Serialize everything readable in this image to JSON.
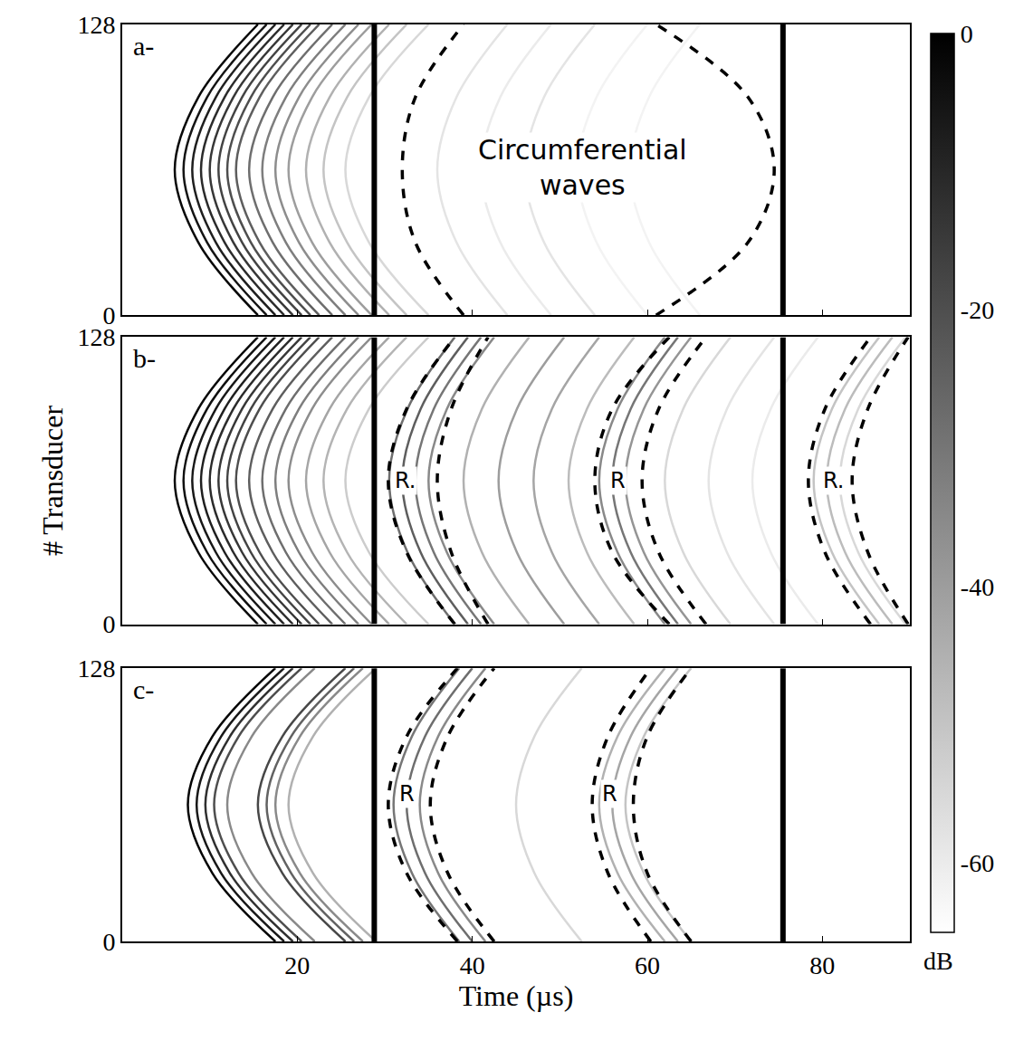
{
  "chart_data": [
    {
      "type": "line",
      "title": "a-",
      "xlim": [
        0,
        90
      ],
      "ylim": [
        0,
        128
      ],
      "xticks": [
        20,
        40,
        60,
        80
      ],
      "yticks": [
        0,
        128
      ],
      "tick_labels": "y",
      "y": [
        0,
        32,
        64,
        96,
        128
      ],
      "colorbar": {
        "range": [
          -65,
          0
        ],
        "ticks": [
          0,
          -20,
          -40,
          -60
        ],
        "label": "dB"
      },
      "vlines": [
        28.8,
        75.5
      ],
      "annotations": [
        {
          "text": "Circumferential\nwaves",
          "x": 52.6,
          "y": 65
        }
      ],
      "series": [
        {
          "x": [
            44,
            38.2,
            36,
            38.2,
            44
          ],
          "level": -58
        },
        {
          "x": [
            49,
            43.2,
            41,
            43.2,
            49
          ],
          "level": -60
        },
        {
          "x": [
            54,
            48.2,
            46,
            48.2,
            54
          ],
          "level": -58
        },
        {
          "x": [
            60,
            54.2,
            52,
            54.2,
            60
          ],
          "level": -62
        },
        {
          "x": [
            66,
            60.2,
            58,
            60.2,
            66
          ],
          "level": -62
        },
        {
          "x": [
            35,
            28.2,
            25.5,
            28.2,
            35
          ],
          "level": -55
        },
        {
          "x": [
            32.5,
            25.7,
            23,
            25.7,
            32.5
          ],
          "level": -50
        },
        {
          "x": [
            30.5,
            23.7,
            21,
            23.7,
            30.5
          ],
          "level": -45
        },
        {
          "x": [
            28.5,
            21.7,
            19,
            21.7,
            28.5
          ],
          "level": -40
        },
        {
          "x": [
            27,
            20.2,
            17.5,
            20.2,
            27
          ],
          "level": -36
        },
        {
          "x": [
            25.5,
            18.7,
            16,
            18.7,
            25.5
          ],
          "level": -32
        },
        {
          "x": [
            24,
            17.2,
            14.5,
            17.2,
            24
          ],
          "level": -28
        },
        {
          "x": [
            22.5,
            15.7,
            13,
            15.7,
            22.5
          ],
          "level": -24
        },
        {
          "x": [
            21.5,
            14.7,
            12,
            14.7,
            21.5
          ],
          "level": -20
        },
        {
          "x": [
            20.5,
            13.7,
            11,
            13.7,
            20.5
          ],
          "level": -17
        },
        {
          "x": [
            19.5,
            12.7,
            10,
            12.7,
            19.5
          ],
          "level": -14
        },
        {
          "x": [
            18.5,
            11.7,
            9,
            11.7,
            18.5
          ],
          "level": -11
        },
        {
          "x": [
            17.5,
            10.7,
            8,
            10.7,
            17.5
          ],
          "level": -8
        },
        {
          "x": [
            16.5,
            9.7,
            7,
            9.7,
            16.5
          ],
          "level": -5
        },
        {
          "x": [
            15.5,
            8.7,
            6,
            8.7,
            15.5
          ],
          "level": -2
        },
        {
          "x": [
            39,
            33.5,
            32,
            33.5,
            39
          ],
          "color": "#000000",
          "line_style": "dashed"
        },
        {
          "x": [
            61,
            71.5,
            74.5,
            71.5,
            61
          ],
          "color": "#000000",
          "line_style": "dashed"
        }
      ]
    },
    {
      "type": "line",
      "title": "b-",
      "xlim": [
        0,
        90
      ],
      "ylim": [
        0,
        128
      ],
      "xticks": [
        20,
        40,
        60,
        80
      ],
      "yticks": [
        0,
        128
      ],
      "tick_labels": "y",
      "y_label": "# Transducer",
      "y": [
        0,
        32,
        64,
        96,
        128
      ],
      "vlines": [
        28.8,
        75.5
      ],
      "annotations": [
        {
          "text": "R.",
          "x": 32.3,
          "y": 64
        },
        {
          "text": "R",
          "x": 56.6,
          "y": 64
        },
        {
          "text": "R.",
          "x": 81.3,
          "y": 64
        }
      ],
      "series": [
        {
          "x": [
            46.5,
            41.1,
            39,
            41.1,
            46.5
          ],
          "level": -45
        },
        {
          "x": [
            50.5,
            45.1,
            43,
            45.1,
            50.5
          ],
          "level": -40
        },
        {
          "x": [
            54.5,
            49.1,
            47,
            49.1,
            54.5
          ],
          "level": -42
        },
        {
          "x": [
            58.5,
            53.1,
            51,
            53.1,
            58.5
          ],
          "level": -48
        },
        {
          "x": [
            69.5,
            64.1,
            62,
            64.1,
            69.5
          ],
          "level": -55
        },
        {
          "x": [
            74.5,
            69.1,
            67,
            69.1,
            74.5
          ],
          "level": -58
        },
        {
          "x": [
            79.5,
            74.1,
            72,
            74.1,
            79.5
          ],
          "level": -60
        },
        {
          "x": [
            35,
            28.2,
            25.5,
            28.2,
            35
          ],
          "level": -52
        },
        {
          "x": [
            32.5,
            25.7,
            23,
            25.7,
            32.5
          ],
          "level": -46
        },
        {
          "x": [
            30.5,
            23.7,
            21,
            23.7,
            30.5
          ],
          "level": -42
        },
        {
          "x": [
            28.5,
            21.7,
            19,
            21.7,
            28.5
          ],
          "level": -36
        },
        {
          "x": [
            27,
            20.2,
            17.5,
            20.2,
            27
          ],
          "level": -32
        },
        {
          "x": [
            25.5,
            18.7,
            16,
            18.7,
            25.5
          ],
          "level": -28
        },
        {
          "x": [
            24,
            17.2,
            14.5,
            17.2,
            24
          ],
          "level": -24
        },
        {
          "x": [
            22.5,
            15.7,
            13,
            15.7,
            22.5
          ],
          "level": -20
        },
        {
          "x": [
            21.5,
            14.7,
            12,
            14.7,
            21.5
          ],
          "level": -17
        },
        {
          "x": [
            20.5,
            13.7,
            11,
            13.7,
            20.5
          ],
          "level": -14
        },
        {
          "x": [
            19.5,
            12.7,
            10,
            12.7,
            19.5
          ],
          "level": -11
        },
        {
          "x": [
            18.5,
            11.7,
            9,
            11.7,
            18.5
          ],
          "level": -8
        },
        {
          "x": [
            17.5,
            10.7,
            8,
            10.7,
            17.5
          ],
          "level": -6
        },
        {
          "x": [
            16.5,
            9.7,
            7,
            9.7,
            16.5
          ],
          "level": -4
        },
        {
          "x": [
            15.5,
            8.7,
            6,
            8.7,
            15.5
          ],
          "level": -2
        },
        {
          "x": [
            38,
            32.6,
            30.5,
            32.6,
            38
          ],
          "level": -28
        },
        {
          "x": [
            39.5,
            34.1,
            32,
            34.1,
            39.5
          ],
          "level": -24
        },
        {
          "x": [
            41,
            35.6,
            33.5,
            35.6,
            41
          ],
          "level": -30
        },
        {
          "x": [
            42.5,
            37.1,
            35,
            37.1,
            42.5
          ],
          "level": -35
        },
        {
          "x": [
            62,
            56.6,
            54.5,
            56.6,
            62
          ],
          "level": -35
        },
        {
          "x": [
            63.5,
            58.1,
            56,
            58.1,
            63.5
          ],
          "level": -30
        },
        {
          "x": [
            65,
            59.6,
            57.5,
            59.6,
            65
          ],
          "level": -38
        },
        {
          "x": [
            86.5,
            81.1,
            79,
            81.1,
            86.5
          ],
          "level": -50
        },
        {
          "x": [
            88,
            82.6,
            80.5,
            82.6,
            88
          ],
          "level": -48
        },
        {
          "x": [
            89.5,
            84.1,
            82,
            84.1,
            89.5
          ],
          "level": -55
        },
        {
          "x": [
            38,
            32.5,
            30.4,
            32.5,
            38
          ],
          "color": "#000000",
          "line_style": "dashed"
        },
        {
          "x": [
            41.8,
            37.6,
            36,
            37.6,
            41.8
          ],
          "color": "#000000",
          "line_style": "dashed"
        },
        {
          "x": [
            62.5,
            56,
            54,
            56,
            62.5
          ],
          "color": "#000000",
          "line_style": "dashed"
        },
        {
          "x": [
            66.7,
            61.3,
            59.4,
            61.3,
            66.7
          ],
          "color": "#000000",
          "line_style": "dashed"
        },
        {
          "x": [
            85.5,
            80.3,
            78.4,
            80.3,
            85.5
          ],
          "color": "#000000",
          "line_style": "dashed"
        },
        {
          "x": [
            89.8,
            85.2,
            83.4,
            85.2,
            89.8
          ],
          "color": "#000000",
          "line_style": "dashed"
        }
      ]
    },
    {
      "type": "line",
      "title": "c-",
      "xlim": [
        0,
        90
      ],
      "ylim": [
        0,
        128
      ],
      "xticks": [
        20,
        40,
        60,
        80
      ],
      "yticks": [
        0,
        128
      ],
      "x_label": "Time (µs)",
      "y": [
        0,
        32,
        64,
        96,
        128
      ],
      "vlines": [
        28.8,
        75.5
      ],
      "annotations": [
        {
          "text": "R",
          "x": 32.5,
          "y": 69
        },
        {
          "text": "R",
          "x": 55.7,
          "y": 69
        }
      ],
      "series": [
        {
          "x": [
            52.5,
            47.1,
            45,
            47.1,
            52.5
          ],
          "level": -55
        },
        {
          "x": [
            29,
            21.8,
            19,
            21.8,
            29
          ],
          "level": -45
        },
        {
          "x": [
            27.5,
            20.3,
            17.5,
            20.3,
            27.5
          ],
          "level": -35
        },
        {
          "x": [
            26.5,
            19.3,
            16.5,
            19.3,
            26.5
          ],
          "level": -25
        },
        {
          "x": [
            25.5,
            18.3,
            15.5,
            18.3,
            25.5
          ],
          "level": -18
        },
        {
          "x": [
            22,
            14.8,
            12,
            14.8,
            22
          ],
          "level": -35
        },
        {
          "x": [
            20.5,
            13.3,
            10.5,
            13.3,
            20.5
          ],
          "level": -20
        },
        {
          "x": [
            19.5,
            12.3,
            9.5,
            12.3,
            19.5
          ],
          "level": -12
        },
        {
          "x": [
            18.5,
            11.3,
            8.5,
            11.3,
            18.5
          ],
          "level": -6
        },
        {
          "x": [
            17.5,
            10.3,
            7.5,
            10.3,
            17.5
          ],
          "level": -1
        },
        {
          "x": [
            38.5,
            33.1,
            31,
            33.1,
            38.5
          ],
          "level": -30
        },
        {
          "x": [
            40,
            34.6,
            32.5,
            34.6,
            40
          ],
          "level": -28
        },
        {
          "x": [
            41.5,
            36.1,
            34,
            36.1,
            41.5
          ],
          "level": -35
        },
        {
          "x": [
            62,
            56.6,
            54.5,
            56.6,
            62
          ],
          "level": -45
        },
        {
          "x": [
            63.5,
            58.1,
            56,
            58.1,
            63.5
          ],
          "level": -42
        },
        {
          "x": [
            65,
            59.6,
            57.5,
            59.6,
            65
          ],
          "level": -50
        },
        {
          "x": [
            38.3,
            32.5,
            30.4,
            32.5,
            38.3
          ],
          "color": "#000000",
          "line_style": "dashed"
        },
        {
          "x": [
            42.5,
            37.2,
            35.2,
            37.2,
            42.5
          ],
          "color": "#000000",
          "line_style": "dashed"
        },
        {
          "x": [
            60.4,
            55.5,
            53.7,
            55.5,
            60.4
          ],
          "color": "#000000",
          "line_style": "dashed"
        },
        {
          "x": [
            65,
            60,
            58.4,
            60,
            65
          ],
          "color": "#000000",
          "line_style": "dashed"
        }
      ]
    }
  ]
}
